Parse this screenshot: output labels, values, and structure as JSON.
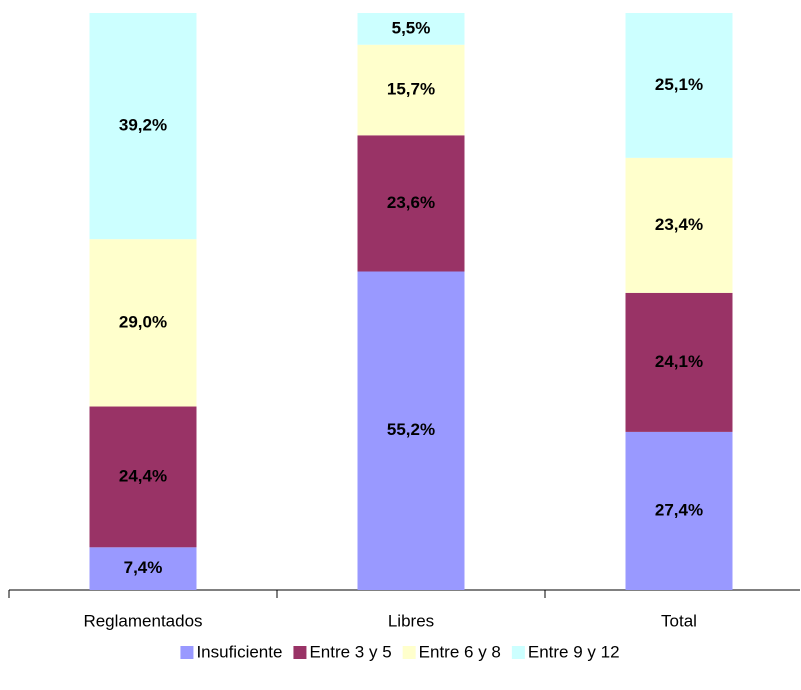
{
  "chart_data": {
    "type": "stacked_bar",
    "categories": [
      "Reglamentados",
      "Libres",
      "Total"
    ],
    "series": [
      {
        "name": "Insuficiente",
        "color": "#9999ff",
        "values": [
          7.4,
          55.2,
          27.4
        ],
        "value_labels": [
          "7,4%",
          "55,2%",
          "27,4%"
        ]
      },
      {
        "name": "Entre 3 y 5",
        "color": "#993366",
        "values": [
          24.4,
          23.6,
          24.1
        ],
        "value_labels": [
          "24,4%",
          "23,6%",
          "24,1%"
        ]
      },
      {
        "name": "Entre 6 y 8",
        "color": "#ffffcc",
        "values": [
          29.0,
          15.7,
          23.4
        ],
        "value_labels": [
          "29,0%",
          "15,7%",
          "23,4%"
        ]
      },
      {
        "name": "Entre 9 y 12",
        "color": "#ccffff",
        "values": [
          39.2,
          5.5,
          25.1
        ],
        "value_labels": [
          "39,2%",
          "5,5%",
          "25,1%"
        ]
      }
    ],
    "legend": "bottom"
  }
}
